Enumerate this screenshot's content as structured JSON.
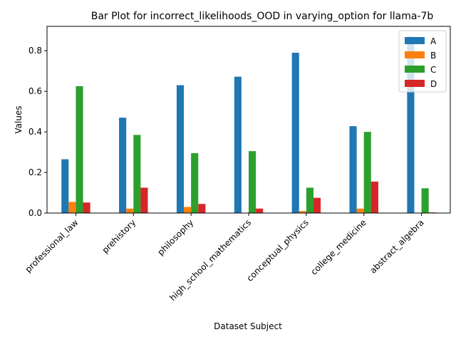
{
  "chart_data": {
    "type": "bar",
    "title": "Bar Plot for incorrect_likelihoods_OOD in varying_option for llama-7b",
    "xlabel": "Dataset Subject",
    "ylabel": "Values",
    "ylim": [
      0,
      0.92
    ],
    "yticks": [
      "0.0",
      "0.2",
      "0.4",
      "0.6",
      "0.8"
    ],
    "categories": [
      "professional_law",
      "prehistory",
      "philosophy",
      "high_school_mathematics",
      "conceptual_physics",
      "college_medicine",
      "abstract_algebra"
    ],
    "series": [
      {
        "name": "A",
        "color": "#1f77b4",
        "values": [
          0.265,
          0.47,
          0.63,
          0.672,
          0.79,
          0.428,
          0.87
        ]
      },
      {
        "name": "B",
        "color": "#ff7f0e",
        "values": [
          0.055,
          0.022,
          0.03,
          0.0,
          0.01,
          0.022,
          0.0
        ]
      },
      {
        "name": "C",
        "color": "#2ca02c",
        "values": [
          0.625,
          0.385,
          0.295,
          0.305,
          0.125,
          0.4,
          0.122
        ]
      },
      {
        "name": "D",
        "color": "#d62728",
        "values": [
          0.052,
          0.125,
          0.045,
          0.022,
          0.075,
          0.155,
          0.003
        ]
      }
    ],
    "legend_position": "top-right",
    "grid": false
  }
}
